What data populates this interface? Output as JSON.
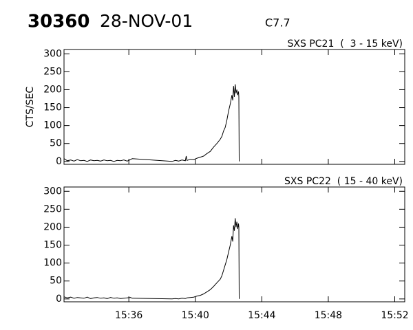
{
  "header": {
    "id": "30360",
    "date": "28-NOV-01",
    "class": "C7.7"
  },
  "chart_data": [
    {
      "type": "line",
      "title": "SXS PC21  (  3 - 15 keV)",
      "ylabel": "CTS/SEC",
      "color": "#000000",
      "xlim": [
        932.1,
        952.6
      ],
      "ylim": [
        -8,
        312
      ],
      "yticks": [
        0,
        50,
        100,
        150,
        200,
        250,
        300
      ],
      "x": [
        932.1,
        932.3,
        932.5,
        932.7,
        932.9,
        933.1,
        933.3,
        933.5,
        933.7,
        933.9,
        934.1,
        934.3,
        934.5,
        934.7,
        934.9,
        935.1,
        935.3,
        935.5,
        935.7,
        935.9,
        936.1,
        936.2,
        938.6,
        938.8,
        939.0,
        939.2,
        939.4,
        939.45,
        939.5,
        939.7,
        939.9,
        940.1,
        940.3,
        940.5,
        940.7,
        940.9,
        941.1,
        941.3,
        941.5,
        941.6,
        941.7,
        941.8,
        941.9,
        942.0,
        942.1,
        942.2,
        942.25,
        942.3,
        942.35,
        942.4,
        942.45,
        942.5,
        942.55,
        942.6,
        942.62,
        942.64
      ],
      "values": [
        8,
        2,
        4,
        1,
        5,
        2,
        3,
        0,
        4,
        2,
        3,
        1,
        4,
        2,
        3,
        0,
        3,
        2,
        4,
        1,
        5,
        8,
        0,
        3,
        1,
        4,
        2,
        15,
        3,
        6,
        5,
        9,
        12,
        15,
        22,
        28,
        40,
        50,
        62,
        70,
        85,
        95,
        115,
        140,
        160,
        185,
        170,
        210,
        180,
        215,
        190,
        200,
        185,
        195,
        180,
        0
      ]
    },
    {
      "type": "line",
      "title": "SXS PC22  ( 15 - 40 keV)",
      "color": "#000000",
      "xlim": [
        932.1,
        952.6
      ],
      "ylim": [
        -8,
        312
      ],
      "yticks": [
        0,
        50,
        100,
        150,
        200,
        250,
        300
      ],
      "xticks": [
        {
          "value": 936,
          "label": "15:36"
        },
        {
          "value": 940,
          "label": "15:40"
        },
        {
          "value": 944,
          "label": "15:44"
        },
        {
          "value": 948,
          "label": "15:48"
        },
        {
          "value": 952,
          "label": "15:52"
        }
      ],
      "x": [
        932.1,
        932.3,
        932.5,
        932.7,
        932.9,
        933.1,
        933.3,
        933.5,
        933.7,
        933.9,
        934.1,
        934.3,
        934.5,
        934.7,
        934.9,
        935.1,
        935.3,
        935.5,
        935.7,
        935.9,
        936.1,
        936.2,
        938.6,
        938.8,
        939.0,
        939.2,
        939.4,
        939.45,
        939.5,
        939.7,
        939.9,
        940.1,
        940.3,
        940.5,
        940.7,
        940.9,
        941.1,
        941.3,
        941.5,
        941.6,
        941.7,
        941.8,
        941.9,
        942.0,
        942.1,
        942.2,
        942.25,
        942.3,
        942.35,
        942.4,
        942.45,
        942.5,
        942.55,
        942.6,
        942.62,
        942.64
      ],
      "values": [
        6,
        3,
        5,
        2,
        4,
        3,
        2,
        5,
        1,
        3,
        4,
        2,
        3,
        1,
        4,
        2,
        3,
        1,
        2,
        3,
        4,
        2,
        0,
        1,
        0,
        2,
        1,
        2,
        3,
        4,
        5,
        8,
        10,
        14,
        20,
        26,
        35,
        45,
        55,
        65,
        80,
        95,
        110,
        130,
        150,
        175,
        160,
        205,
        190,
        225,
        200,
        215,
        195,
        210,
        200,
        0
      ]
    }
  ]
}
